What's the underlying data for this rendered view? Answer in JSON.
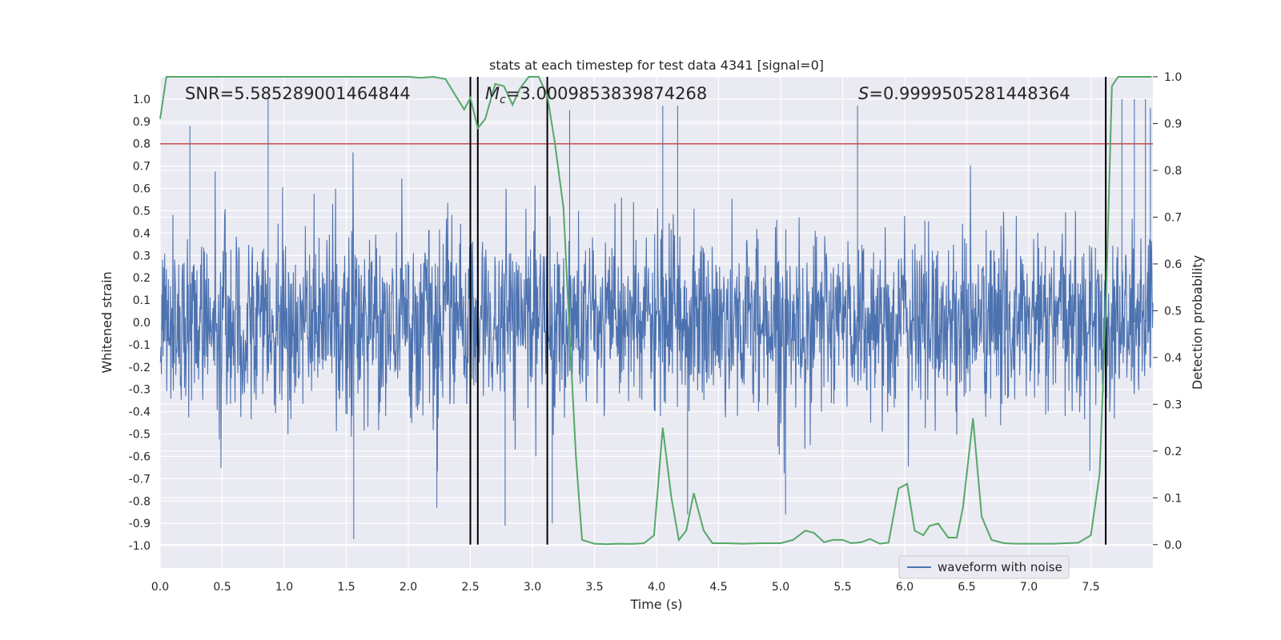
{
  "chart_data": {
    "type": "line",
    "title": "stats at each timestep for test data 4341 [signal=0]",
    "xlabel": "Time (s)",
    "ylabel_left": "Whitened strain",
    "ylabel_right": "Detection probability",
    "xlim": [
      0,
      8
    ],
    "ylim_left": [
      -1.1,
      1.1
    ],
    "ylim_right": [
      -0.05,
      1.0
    ],
    "x_ticks": [
      "0.0",
      "0.5",
      "1.0",
      "1.5",
      "2.0",
      "2.5",
      "3.0",
      "3.5",
      "4.0",
      "4.5",
      "5.0",
      "5.5",
      "6.0",
      "6.5",
      "7.0",
      "7.5"
    ],
    "y_ticks_left": [
      "-1.0",
      "-0.9",
      "-0.8",
      "-0.7",
      "-0.6",
      "-0.5",
      "-0.4",
      "-0.3",
      "-0.2",
      "-0.1",
      "0.0",
      "0.1",
      "0.2",
      "0.3",
      "0.4",
      "0.5",
      "0.6",
      "0.7",
      "0.8",
      "0.9",
      "1.0"
    ],
    "y_ticks_right": [
      "0.0",
      "0.1",
      "0.2",
      "0.3",
      "0.4",
      "0.5",
      "0.6",
      "0.7",
      "0.8",
      "0.9",
      "1.0"
    ],
    "grid": true,
    "legend_position": "lower-right",
    "annotations": {
      "snr": "SNR=5.585289001464844",
      "mc_symbol": "M",
      "mc_sub": "c",
      "mc_value": "=3.0009853839874268",
      "s_symbol": "S",
      "s_value": "=0.9999505281448364"
    },
    "threshold": {
      "value": 0.8,
      "color": "#c44e52"
    },
    "vertical_lines": [
      2.5,
      2.56,
      3.12,
      7.62
    ],
    "series": [
      {
        "name": "waveform with noise",
        "axis": "left",
        "color": "#4c72b0",
        "kind": "noise",
        "notable_peaks": [
          [
            0.24,
            0.88
          ],
          [
            0.87,
            1.0
          ],
          [
            1.56,
            -0.97
          ],
          [
            2.23,
            -0.83
          ],
          [
            2.78,
            -0.91
          ],
          [
            3.16,
            -0.9
          ],
          [
            3.3,
            0.95
          ],
          [
            4.05,
            0.97
          ],
          [
            4.17,
            0.97
          ],
          [
            4.25,
            -0.86
          ],
          [
            5.62,
            0.97
          ],
          [
            5.04,
            -0.86
          ],
          [
            7.75,
            1.0
          ],
          [
            7.85,
            1.0
          ],
          [
            7.94,
            1.0
          ],
          [
            7.98,
            0.96
          ]
        ]
      },
      {
        "name": "Detection probability",
        "axis": "right",
        "color": "#55a868",
        "x": [
          0.0,
          0.05,
          0.1,
          0.2,
          0.3,
          0.4,
          0.5,
          0.6,
          0.7,
          0.8,
          0.9,
          1.0,
          1.1,
          1.2,
          1.3,
          1.4,
          1.5,
          1.6,
          1.7,
          1.8,
          1.9,
          2.0,
          2.1,
          2.2,
          2.3,
          2.38,
          2.45,
          2.5,
          2.56,
          2.62,
          2.7,
          2.77,
          2.84,
          2.9,
          2.97,
          3.05,
          3.12,
          3.18,
          3.25,
          3.3,
          3.35,
          3.4,
          3.5,
          3.6,
          3.7,
          3.8,
          3.9,
          3.98,
          4.05,
          4.12,
          4.18,
          4.24,
          4.3,
          4.38,
          4.45,
          4.55,
          4.7,
          4.85,
          5.0,
          5.1,
          5.2,
          5.27,
          5.35,
          5.42,
          5.5,
          5.57,
          5.65,
          5.72,
          5.8,
          5.87,
          5.95,
          6.02,
          6.08,
          6.15,
          6.2,
          6.27,
          6.35,
          6.42,
          6.47,
          6.55,
          6.62,
          6.7,
          6.8,
          6.9,
          7.0,
          7.2,
          7.4,
          7.5,
          7.57,
          7.62,
          7.67,
          7.72,
          7.8,
          7.9,
          7.99
        ],
        "values": [
          0.91,
          1.0,
          1.0,
          1.0,
          1.0,
          1.0,
          1.0,
          1.0,
          1.0,
          1.0,
          1.0,
          1.0,
          1.0,
          1.0,
          1.0,
          1.0,
          1.0,
          1.0,
          1.0,
          1.0,
          1.0,
          1.0,
          0.998,
          1.0,
          0.995,
          0.96,
          0.93,
          0.955,
          0.89,
          0.91,
          0.985,
          0.98,
          0.94,
          0.975,
          1.0,
          1.0,
          0.96,
          0.86,
          0.72,
          0.45,
          0.19,
          0.01,
          0.002,
          0.001,
          0.002,
          0.0015,
          0.003,
          0.02,
          0.25,
          0.1,
          0.01,
          0.03,
          0.11,
          0.03,
          0.003,
          0.003,
          0.002,
          0.003,
          0.003,
          0.01,
          0.03,
          0.025,
          0.005,
          0.01,
          0.01,
          0.003,
          0.005,
          0.012,
          0.002,
          0.004,
          0.12,
          0.13,
          0.03,
          0.02,
          0.04,
          0.045,
          0.015,
          0.015,
          0.08,
          0.27,
          0.06,
          0.01,
          0.003,
          0.002,
          0.002,
          0.002,
          0.004,
          0.02,
          0.15,
          0.5,
          0.98,
          1.0,
          1.0,
          1.0,
          1.0
        ]
      }
    ]
  }
}
